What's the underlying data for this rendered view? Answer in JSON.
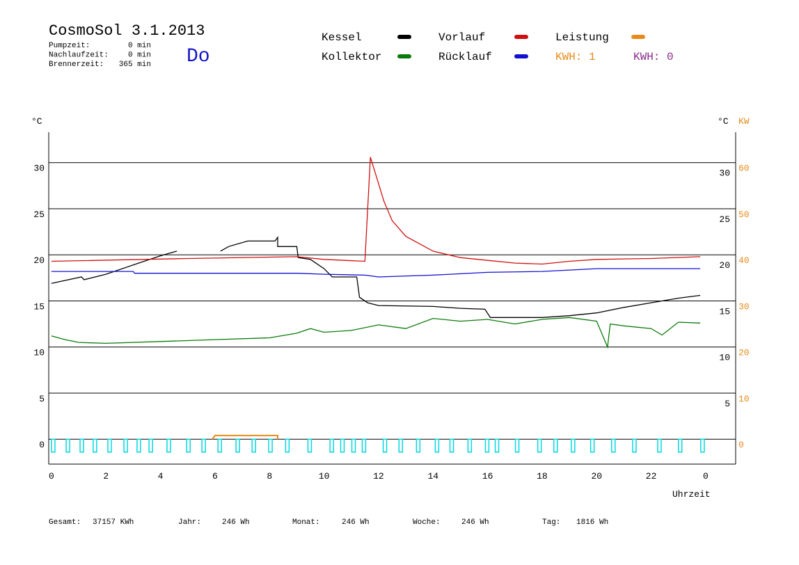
{
  "header": {
    "title": "CosmoSol 3.1.2013",
    "day": "Do",
    "info": [
      [
        "Pumpzeit:",
        "0 min"
      ],
      [
        "Nachlaufzeit:",
        "0 min"
      ],
      [
        "Brennerzeit:",
        "365 min"
      ]
    ],
    "kwh": [
      {
        "text": "KWH: 1",
        "color": "#e88a1a"
      },
      {
        "text": "KWH: 0",
        "color": "#8a2a8a"
      }
    ]
  },
  "footer": [
    [
      "Gesamt:",
      "37157 KWh"
    ],
    [
      "Jahr:",
      "246 Wh"
    ],
    [
      "Monat:",
      "246 Wh"
    ],
    [
      "Woche:",
      "246 Wh"
    ],
    [
      "Tag:",
      "1816 Wh"
    ]
  ],
  "chart_data": {
    "type": "line",
    "x_label": "Uhrzeit",
    "y_unit": "°C",
    "y2_unit_left": "°C",
    "y2_unit": "KW",
    "xlim": [
      -0.1,
      25.1
    ],
    "xticks": [
      0,
      2,
      4,
      6,
      8,
      10,
      12,
      14,
      16,
      18,
      20,
      22,
      {
        "value": 24,
        "label": "0"
      }
    ],
    "ylim": [
      -2.7,
      33.3
    ],
    "yticks": [
      0,
      5,
      10,
      15,
      20,
      25,
      30
    ],
    "y_right_ticks": [
      5,
      10,
      15,
      20,
      25,
      30
    ],
    "y2lim": [
      -5.4,
      66.6
    ],
    "y2ticks": [
      0,
      10,
      20,
      30,
      40,
      50,
      60
    ],
    "grid": true,
    "series": [
      {
        "name": "Kessel",
        "color": "#000000",
        "x": [
          0,
          1.1,
          1.2,
          2,
          3,
          4,
          4.6,
          null,
          6.2,
          6.5,
          7.2,
          8.2,
          8.3,
          8.3,
          9,
          9.05,
          9.5,
          10,
          10.3,
          11.2,
          11.3,
          11.6,
          12,
          14,
          15,
          15.9,
          16.1,
          18,
          19,
          20,
          21,
          22,
          23,
          23.8
        ],
        "values": [
          16.9,
          17.6,
          17.3,
          17.9,
          18.9,
          19.9,
          20.4,
          null,
          20.4,
          20.9,
          21.5,
          21.5,
          21.9,
          20.9,
          20.9,
          19.7,
          19.5,
          18.5,
          17.6,
          17.6,
          15.4,
          14.8,
          14.5,
          14.4,
          14.2,
          14.1,
          13.2,
          13.2,
          13.4,
          13.7,
          14.3,
          14.8,
          15.3,
          15.6
        ]
      },
      {
        "name": "Kollektor",
        "color": "#0a7a0a",
        "x": [
          0,
          0.5,
          1,
          2,
          4,
          6,
          8,
          9,
          9.5,
          10,
          11,
          12,
          13,
          14,
          15,
          16,
          17,
          18,
          19,
          20,
          20.4,
          20.5,
          21,
          22,
          22.4,
          23,
          23.8
        ],
        "values": [
          11.2,
          10.8,
          10.5,
          10.4,
          10.6,
          10.8,
          11.0,
          11.5,
          12.0,
          11.6,
          11.8,
          12.4,
          12.0,
          13.1,
          12.8,
          13.0,
          12.5,
          13.0,
          13.2,
          12.8,
          10.0,
          12.5,
          12.3,
          12.0,
          11.3,
          12.7,
          12.6
        ]
      },
      {
        "name": "Vorlauf",
        "color": "#d01010",
        "x": [
          0,
          5,
          9,
          10,
          11.5,
          11.7,
          12.2,
          12.5,
          13,
          14,
          15,
          16,
          17,
          18,
          19,
          20,
          22,
          23.8
        ],
        "values": [
          19.3,
          19.6,
          19.8,
          19.5,
          19.3,
          30.6,
          25.8,
          23.7,
          22.0,
          20.4,
          19.7,
          19.4,
          19.1,
          19.0,
          19.3,
          19.5,
          19.6,
          19.8
        ]
      },
      {
        "name": "Rücklauf",
        "color": "#1010d0",
        "x": [
          0,
          3,
          3.05,
          9,
          10,
          11.5,
          12,
          14,
          16,
          18,
          20,
          23.8
        ],
        "values": [
          18.2,
          18.2,
          18.0,
          18.0,
          17.9,
          17.8,
          17.6,
          17.8,
          18.1,
          18.2,
          18.5,
          18.5
        ]
      },
      {
        "name": "Leistung",
        "color": "#e88a1a",
        "axis": "y2",
        "x": [
          5.9,
          6.0,
          8.3,
          8.3
        ],
        "values": [
          0,
          0.8,
          0.8,
          0
        ]
      },
      {
        "color": "#00d8e0",
        "style": "pulse",
        "x": [
          0,
          0.54,
          1.05,
          1.53,
          2.07,
          2.66,
          3.14,
          3.58,
          4.24,
          4.96,
          5.52,
          6.11,
          6.77,
          7.36,
          7.97,
          8.59,
          9.41,
          10.22,
          10.61,
          11.02,
          11.4,
          12.17,
          12.75,
          13.39,
          14.08,
          14.62,
          15.28,
          15.92,
          16.28,
          17.02,
          17.84,
          18.43,
          19.07,
          19.78,
          20.55,
          21.32,
          22.24,
          23.0,
          23.82
        ],
        "values": [
          -1.4,
          -1.4,
          -1.4,
          -1.4,
          -1.4,
          -1.4,
          -1.4,
          -1.4,
          -1.4,
          -1.4,
          -1.4,
          -1.4,
          -1.4,
          -1.4,
          -1.4,
          -1.4,
          -1.4,
          -1.4,
          -1.4,
          -1.4,
          -1.4,
          -1.4,
          -1.4,
          -1.4,
          -1.4,
          -1.4,
          -1.4,
          -1.4,
          -1.4,
          -1.4,
          -1.4,
          -1.4,
          -1.4,
          -1.4,
          -1.4,
          -1.4,
          -1.4,
          -1.4,
          -1.4
        ]
      }
    ]
  }
}
